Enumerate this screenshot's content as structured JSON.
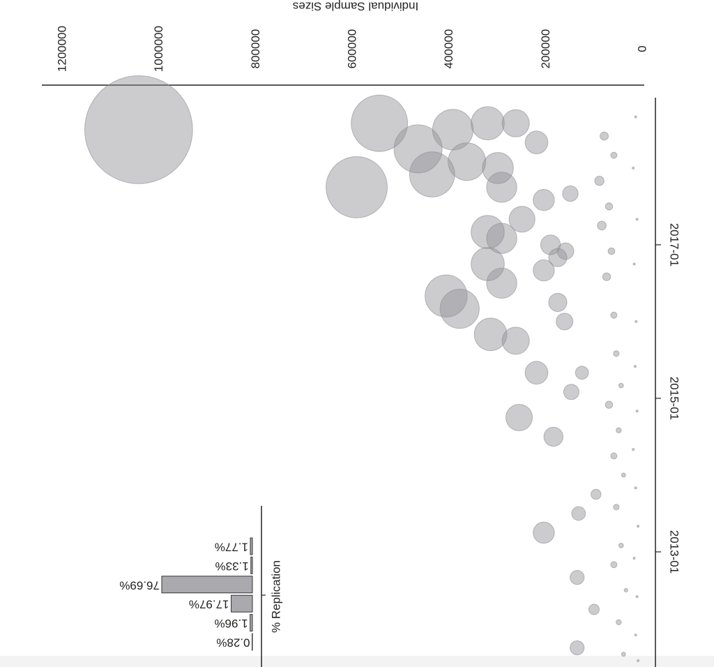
{
  "chart_data": [
    {
      "type": "scatter",
      "y_label": "Individual Sample Sizes",
      "xlim": [
        "2011-07",
        "2018-12"
      ],
      "xticks": [
        "2013-01",
        "2015-01",
        "2017-01"
      ],
      "ylim": [
        0,
        1200000
      ],
      "yticks": [
        0,
        200000,
        400000,
        600000,
        800000,
        1000000,
        1200000
      ],
      "x": [
        "2018-07",
        "2018-08",
        "2017-10",
        "2018-04",
        "2017-12",
        "2018-07",
        "2018-02",
        "2018-08",
        "2017-10",
        "2018-08",
        "2017-03",
        "2017-02",
        "2016-05",
        "2016-10",
        "2016-07",
        "2016-03",
        "2015-11",
        "2015-10",
        "2015-05",
        "2014-10",
        "2013-04",
        "2014-07",
        "2018-05",
        "2017-08",
        "2017-01",
        "2016-11",
        "2016-09",
        "2016-04",
        "2016-01",
        "2015-02",
        "2013-07",
        "2012-09",
        "2011-10",
        "2013-10",
        "2012-04",
        "2015-05",
        "2017-05",
        "2018-01",
        "2016-12",
        "2017-09",
        "2018-06",
        "2018-03",
        "2017-11",
        "2017-07",
        "2017-04",
        "2016-12",
        "2016-08",
        "2016-02",
        "2015-08",
        "2015-03",
        "2014-12",
        "2014-08",
        "2014-04",
        "2014-01",
        "2013-08",
        "2013-02",
        "2012-11",
        "2012-07",
        "2012-02",
        "2011-09",
        "2018-09",
        "2018-01",
        "2017-05",
        "2016-10",
        "2016-01",
        "2015-06",
        "2014-11",
        "2014-05",
        "2013-11",
        "2013-05",
        "2012-12",
        "2012-06",
        "2011-12",
        "2011-08"
      ],
      "series": [
        {
          "color": "#8e8e94",
          "values": [
            1043000,
            545000,
            592000,
            465000,
            436000,
            393000,
            364000,
            321000,
            292000,
            263000,
            321000,
            292000,
            407000,
            321000,
            292000,
            379000,
            315000,
            263000,
            220000,
            256000,
            205000,
            185000,
            220000,
            205000,
            191000,
            176000,
            205000,
            176000,
            162000,
            148000,
            133000,
            136000,
            136000,
            97000,
            101000,
            126000,
            250000,
            300000,
            160000,
            150000,
            80000,
            60000,
            90000,
            70000,
            85000,
            65000,
            75000,
            60000,
            55000,
            45000,
            70000,
            50000,
            60000,
            40000,
            55000,
            45000,
            60000,
            35000,
            50000,
            40000,
            15000,
            20000,
            12000,
            18000,
            14000,
            16000,
            12000,
            20000,
            15000,
            10000,
            18000,
            12000,
            15000,
            10000
          ]
        }
      ]
    },
    {
      "type": "bar",
      "x_label": "% Replication",
      "categories": [
        null,
        null,
        null,
        null,
        null,
        null
      ],
      "values": [
        0.28,
        1.96,
        17.97,
        76.69,
        1.33,
        1.77
      ],
      "value_labels": [
        "0.28%",
        "1.96%",
        "17.97%",
        "76.69%",
        "1.33%",
        "1.77%"
      ],
      "color": "#a9a9ae"
    }
  ]
}
